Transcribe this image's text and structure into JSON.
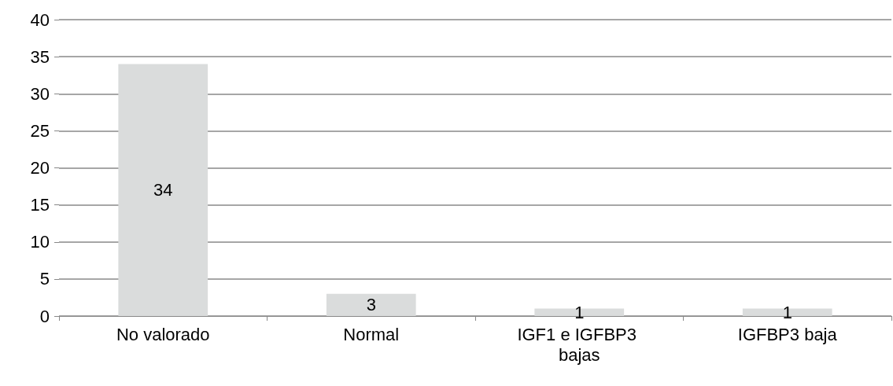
{
  "chart_data": {
    "type": "bar",
    "categories": [
      "No valorado",
      "Normal",
      "IGF1 e IGFBP3 bajas",
      "IGFBP3 baja"
    ],
    "values": [
      34,
      3,
      1,
      1
    ],
    "color": "#dadcdc",
    "ylim": [
      0,
      40
    ],
    "yticks": [
      0,
      5,
      10,
      15,
      20,
      25,
      30,
      35,
      40
    ],
    "grid": "y",
    "data_labels": true
  }
}
